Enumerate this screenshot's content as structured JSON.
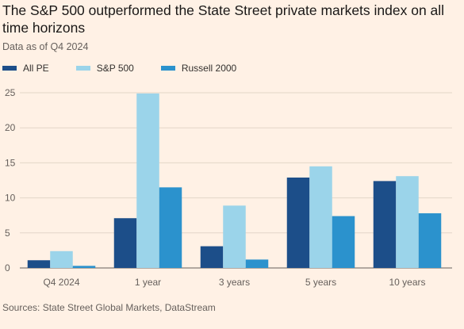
{
  "header": {
    "title": "The S&P 500 outperformed the State Street private markets index on all time horizons",
    "subtitle": "Data as of Q4 2024"
  },
  "footer": {
    "source": "Sources: State Street Global Markets, DataStream"
  },
  "chart_data": {
    "type": "bar",
    "categories": [
      "Q4 2024",
      "1 year",
      "3 years",
      "5 years",
      "10 years"
    ],
    "series": [
      {
        "name": "All PE",
        "color": "#1c4e89",
        "values": [
          1.1,
          7.1,
          3.1,
          12.9,
          12.4
        ]
      },
      {
        "name": "S&P 500",
        "color": "#9bd4ea",
        "values": [
          2.4,
          24.9,
          8.9,
          14.5,
          13.1
        ]
      },
      {
        "name": "Russell 2000",
        "color": "#2b92cd",
        "values": [
          0.3,
          11.5,
          1.2,
          7.4,
          7.8
        ]
      }
    ],
    "ylim": [
      0,
      25
    ],
    "yticks": [
      0,
      5,
      10,
      15,
      20,
      25
    ],
    "grid": true,
    "legend": "top-left"
  }
}
